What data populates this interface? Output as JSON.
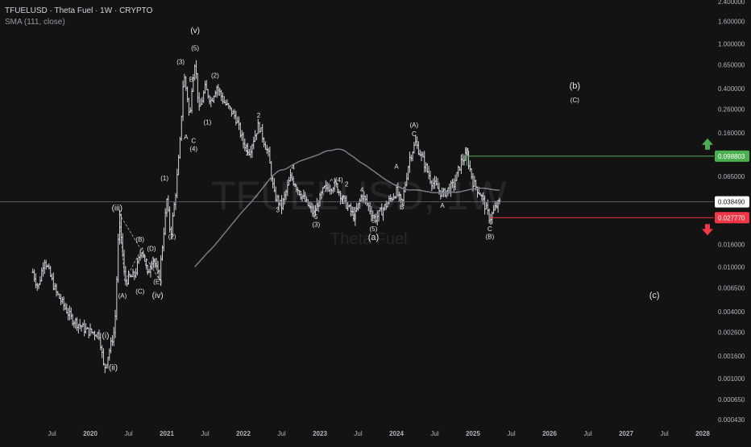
{
  "header": {
    "title": "TFUELUSD · Theta Fuel · 1W · CRYPTO",
    "indicator": "SMA (111, close)"
  },
  "watermark": {
    "symbol": "TFUELUSD, 1W",
    "name": "Theta Fuel"
  },
  "colors": {
    "background": "#131313",
    "candle": "#d1d4dc",
    "sma": "#787b86",
    "target_up": "#4caf50",
    "target_down": "#f23645",
    "price_tag": "#ffffff"
  },
  "chart_data": {
    "type": "candlestick",
    "y_scale": "log",
    "ylim": [
      0.00043,
      2.4
    ],
    "y_ticks": [
      "2.400000",
      "1.600000",
      "1.000000",
      "0.650000",
      "0.400000",
      "0.260000",
      "0.160000",
      "0.098803",
      "0.065000",
      "0.038490",
      "0.027770",
      "0.016000",
      "0.010000",
      "0.006500",
      "0.004000",
      "0.002600",
      "0.001600",
      "0.001000",
      "0.000650",
      "0.000430"
    ],
    "x_ticks": [
      "Jul",
      "2020",
      "Jul",
      "2021",
      "Jul",
      "2022",
      "Jul",
      "2023",
      "Jul",
      "2024",
      "Jul",
      "2025",
      "Jul",
      "2026",
      "Jul",
      "2027",
      "Jul",
      "2028"
    ],
    "last_price": "0.038490",
    "target_up": "0.098803",
    "target_down": "0.027770",
    "sma_label": "SMA (111, close)",
    "wave_labels": [
      "(i)",
      "(ii)",
      "(iii)",
      "(iv)",
      "(v)",
      "(A)",
      "(B)",
      "(C)",
      "(D)",
      "(E)",
      "(1)",
      "(2)",
      "(3)",
      "(4)",
      "(5)",
      "A",
      "B",
      "C",
      "1",
      "2",
      "3",
      "4",
      "5",
      "(a)",
      "(b)",
      "(c)"
    ],
    "annotations": [
      {
        "text": "(v)",
        "date": 2021.37,
        "price": 1.25
      },
      {
        "text": "(5)",
        "date": 2021.37,
        "price": 0.88
      },
      {
        "text": "(3)",
        "date": 2021.18,
        "price": 0.66
      },
      {
        "text": "(2)",
        "date": 2021.63,
        "price": 0.5
      },
      {
        "text": "B",
        "date": 2021.32,
        "price": 0.46
      },
      {
        "text": "(1)",
        "date": 2021.53,
        "price": 0.19
      },
      {
        "text": "A",
        "date": 2021.25,
        "price": 0.14
      },
      {
        "text": "C",
        "date": 2021.35,
        "price": 0.13
      },
      {
        "text": "(4)",
        "date": 2021.35,
        "price": 0.11
      },
      {
        "text": "2",
        "date": 2022.2,
        "price": 0.22
      },
      {
        "text": "1",
        "date": 2022.05,
        "price": 0.1
      },
      {
        "text": "4",
        "date": 2022.65,
        "price": 0.075
      },
      {
        "text": "3",
        "date": 2022.45,
        "price": 0.031
      },
      {
        "text": "(4)",
        "date": 2023.25,
        "price": 0.058
      },
      {
        "text": "2",
        "date": 2023.35,
        "price": 0.053
      },
      {
        "text": "4",
        "date": 2023.55,
        "price": 0.047
      },
      {
        "text": "1",
        "date": 2023.3,
        "price": 0.037
      },
      {
        "text": "5",
        "date": 2022.95,
        "price": 0.027
      },
      {
        "text": "(3)",
        "date": 2022.95,
        "price": 0.023
      },
      {
        "text": "3",
        "date": 2023.45,
        "price": 0.027
      },
      {
        "text": "5",
        "date": 2023.7,
        "price": 0.025
      },
      {
        "text": "(5)",
        "date": 2023.7,
        "price": 0.021
      },
      {
        "text": "(a)",
        "date": 2023.7,
        "price": 0.0175
      },
      {
        "text": "A",
        "date": 2024.0,
        "price": 0.076
      },
      {
        "text": "B",
        "date": 2024.07,
        "price": 0.033
      },
      {
        "text": "(A)",
        "date": 2024.23,
        "price": 0.18
      },
      {
        "text": "C",
        "date": 2024.23,
        "price": 0.15
      },
      {
        "text": "A",
        "date": 2024.6,
        "price": 0.034
      },
      {
        "text": "B",
        "date": 2024.92,
        "price": 0.106
      },
      {
        "text": "C",
        "date": 2025.22,
        "price": 0.021
      },
      {
        "text": "(B)",
        "date": 2025.22,
        "price": 0.018
      },
      {
        "text": "(b)",
        "date": 2026.33,
        "price": 0.4
      },
      {
        "text": "(C)",
        "date": 2026.33,
        "price": 0.3
      },
      {
        "text": "(c)",
        "date": 2027.37,
        "price": 0.0053
      },
      {
        "text": "(iii)",
        "date": 2020.35,
        "price": 0.032
      },
      {
        "text": "(B)",
        "date": 2020.65,
        "price": 0.017
      },
      {
        "text": "(D)",
        "date": 2020.8,
        "price": 0.014
      },
      {
        "text": "(A)",
        "date": 2020.42,
        "price": 0.0053
      },
      {
        "text": "(C)",
        "date": 2020.65,
        "price": 0.0058
      },
      {
        "text": "(E)",
        "date": 2020.88,
        "price": 0.0071
      },
      {
        "text": "(iv)",
        "date": 2020.88,
        "price": 0.0053
      },
      {
        "text": "(i)",
        "date": 2020.2,
        "price": 0.0023
      },
      {
        "text": "(ii)",
        "date": 2020.3,
        "price": 0.0012
      },
      {
        "text": "(1)",
        "date": 2020.97,
        "price": 0.06
      },
      {
        "text": "(2)",
        "date": 2021.07,
        "price": 0.018
      }
    ]
  }
}
